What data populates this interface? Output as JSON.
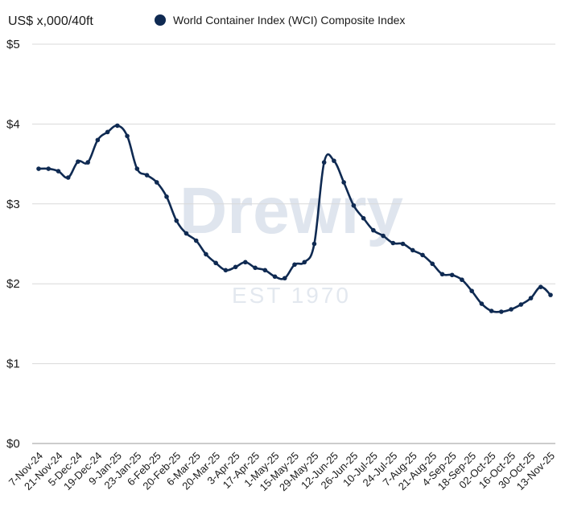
{
  "watermark": {
    "brand": "Drewry",
    "est": "EST 1970"
  },
  "chart_data": {
    "type": "line",
    "unit_label": "US$ x,000/40ft",
    "title": "",
    "xlabel": "",
    "ylabel": "",
    "ylim": [
      0,
      5
    ],
    "yticks": [
      "$0",
      "$1",
      "$2",
      "$3",
      "$4",
      "$5"
    ],
    "grid": "horizontal",
    "legend_position": "top",
    "x_tick_labels": [
      "7-Nov-24",
      "21-Nov-24",
      "5-Dec-24",
      "19-Dec-24",
      "9-Jan-25",
      "23-Jan-25",
      "6-Feb-25",
      "20-Feb-25",
      "6-Mar-25",
      "20-Mar-25",
      "3-Apr-25",
      "17-Apr-25",
      "1-May-25",
      "15-May-25",
      "29-May-25",
      "12-Jun-25",
      "26-Jun-25",
      "10-Jul-25",
      "24-Jul-25",
      "7-Aug-25",
      "21-Aug-25",
      "4-Sep-25",
      "18-Sep-25",
      "02-Oct-25",
      "16-Oct-25",
      "30-Oct-25",
      "13-Nov-25"
    ],
    "series": [
      {
        "name": "World Container Index (WCI) Composite Index",
        "color": "#0f2a52",
        "values": [
          3.44,
          3.44,
          3.41,
          3.33,
          3.53,
          3.52,
          3.8,
          3.9,
          3.98,
          3.85,
          3.44,
          3.36,
          3.27,
          3.09,
          2.79,
          2.63,
          2.54,
          2.37,
          2.26,
          2.17,
          2.21,
          2.27,
          2.2,
          2.17,
          2.09,
          2.07,
          2.24,
          2.27,
          2.5,
          3.52,
          3.54,
          3.27,
          2.98,
          2.82,
          2.67,
          2.6,
          2.51,
          2.5,
          2.42,
          2.36,
          2.25,
          2.12,
          2.11,
          2.05,
          1.91,
          1.75,
          1.66,
          1.65,
          1.68,
          1.74,
          1.82,
          1.96,
          1.86
        ]
      }
    ]
  }
}
